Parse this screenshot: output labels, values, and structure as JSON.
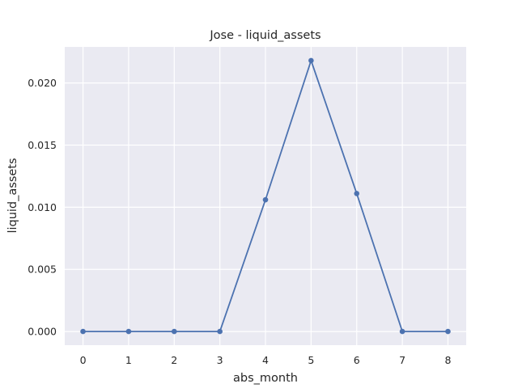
{
  "chart_data": {
    "type": "line",
    "title": "Jose - liquid_assets",
    "xlabel": "abs_month",
    "ylabel": "liquid_assets",
    "x": [
      0,
      1,
      2,
      3,
      4,
      5,
      6,
      7,
      8
    ],
    "series": [
      {
        "values": [
          0.0,
          0.0,
          0.0,
          0.0,
          0.0106,
          0.0218,
          0.0111,
          0.0,
          0.0
        ],
        "color": "#4c72b0",
        "marker": "circle"
      }
    ],
    "xticks": [
      "0",
      "1",
      "2",
      "3",
      "4",
      "5",
      "6",
      "7",
      "8"
    ],
    "yticks": [
      "0.000",
      "0.005",
      "0.010",
      "0.015",
      "0.020"
    ],
    "xlim": [
      -0.4,
      8.4
    ],
    "ylim": [
      -0.0011,
      0.0229
    ],
    "grid": true,
    "background": "#eaeaf2"
  }
}
